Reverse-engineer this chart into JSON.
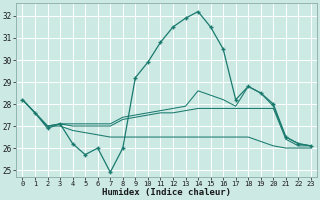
{
  "title": "",
  "xlabel": "Humidex (Indice chaleur)",
  "bg_color": "#cce9e4",
  "grid_color": "#dde8e6",
  "line_color": "#1a7a6e",
  "xlim": [
    -0.5,
    23.5
  ],
  "ylim": [
    24.7,
    32.6
  ],
  "yticks": [
    25,
    26,
    27,
    28,
    29,
    30,
    31,
    32
  ],
  "xticks": [
    0,
    1,
    2,
    3,
    4,
    5,
    6,
    7,
    8,
    9,
    10,
    11,
    12,
    13,
    14,
    15,
    16,
    17,
    18,
    19,
    20,
    21,
    22,
    23
  ],
  "series": [
    {
      "x": [
        0,
        1,
        2,
        3,
        4,
        5,
        6,
        7,
        8,
        9,
        10,
        11,
        12,
        13,
        14,
        15,
        16,
        17,
        18,
        19,
        20,
        21,
        22,
        23
      ],
      "y": [
        28.2,
        27.6,
        26.9,
        27.1,
        26.2,
        25.7,
        26.0,
        24.9,
        26.0,
        29.2,
        29.9,
        30.8,
        31.5,
        31.9,
        32.2,
        31.5,
        30.5,
        28.2,
        28.8,
        28.5,
        28.0,
        26.5,
        26.2,
        26.1
      ],
      "marker": "+"
    },
    {
      "x": [
        0,
        1,
        2,
        3,
        4,
        5,
        6,
        7,
        8,
        9,
        10,
        11,
        12,
        13,
        14,
        15,
        16,
        17,
        18,
        19,
        20,
        21,
        22,
        23
      ],
      "y": [
        28.2,
        27.6,
        27.0,
        27.1,
        27.1,
        27.1,
        27.1,
        27.1,
        27.4,
        27.5,
        27.6,
        27.7,
        27.8,
        27.9,
        28.6,
        28.4,
        28.2,
        27.9,
        28.8,
        28.5,
        27.9,
        26.5,
        26.2,
        26.1
      ],
      "marker": null
    },
    {
      "x": [
        0,
        1,
        2,
        3,
        4,
        5,
        6,
        7,
        8,
        9,
        10,
        11,
        12,
        13,
        14,
        15,
        16,
        17,
        18,
        19,
        20,
        21,
        22,
        23
      ],
      "y": [
        28.2,
        27.6,
        27.0,
        27.1,
        27.0,
        27.0,
        27.0,
        27.0,
        27.3,
        27.4,
        27.5,
        27.6,
        27.6,
        27.7,
        27.8,
        27.8,
        27.8,
        27.8,
        27.8,
        27.8,
        27.8,
        26.4,
        26.1,
        26.1
      ],
      "marker": null
    },
    {
      "x": [
        0,
        1,
        2,
        3,
        4,
        5,
        6,
        7,
        8,
        9,
        10,
        11,
        12,
        13,
        14,
        15,
        16,
        17,
        18,
        19,
        20,
        21,
        22,
        23
      ],
      "y": [
        28.2,
        27.6,
        27.0,
        27.0,
        26.8,
        26.7,
        26.6,
        26.5,
        26.5,
        26.5,
        26.5,
        26.5,
        26.5,
        26.5,
        26.5,
        26.5,
        26.5,
        26.5,
        26.5,
        26.3,
        26.1,
        26.0,
        26.0,
        26.0
      ],
      "marker": null
    }
  ]
}
